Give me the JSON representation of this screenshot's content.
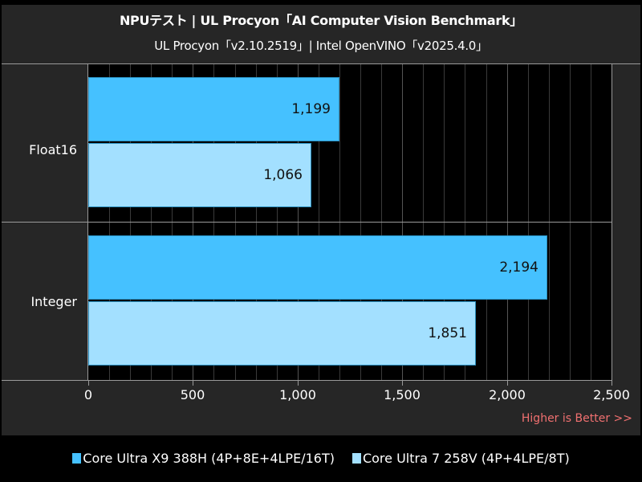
{
  "header": {
    "title": "NPUテスト | UL Procyon「AI Computer Vision Benchmark」",
    "subtitle": "UL Procyon「v2.10.2519」| Intel OpenVINO「v2025.4.0」"
  },
  "axis": {
    "ticks": [
      "0",
      "500",
      "1,000",
      "1,500",
      "2,000",
      "2,500"
    ],
    "note": "Higher is Better >>"
  },
  "legend": {
    "items": [
      {
        "label": "Core Ultra X9 388H (4P+8E+4LPE/16T)",
        "color": "#45c1ff"
      },
      {
        "label": "Core Ultra 7 258V (4P+4LPE/8T)",
        "color": "#a3e0ff"
      }
    ]
  },
  "categories": [
    {
      "label": "Float16",
      "values": [
        {
          "value": 1199,
          "label": "1,199"
        },
        {
          "value": 1066,
          "label": "1,066"
        }
      ]
    },
    {
      "label": "Integer",
      "values": [
        {
          "value": 2194,
          "label": "2,194"
        },
        {
          "value": 1851,
          "label": "1,851"
        }
      ]
    }
  ],
  "chart_data": {
    "type": "bar",
    "orientation": "horizontal",
    "title": "NPUテスト | UL Procyon「AI Computer Vision Benchmark」",
    "subtitle": "UL Procyon「v2.10.2519」| Intel OpenVINO「v2025.4.0」",
    "categories": [
      "Float16",
      "Integer"
    ],
    "series": [
      {
        "name": "Core Ultra X9 388H (4P+8E+4LPE/16T)",
        "color": "#45c1ff",
        "values": [
          1199,
          2194
        ]
      },
      {
        "name": "Core Ultra 7 258V (4P+4LPE/8T)",
        "color": "#a3e0ff",
        "values": [
          1066,
          1851
        ]
      }
    ],
    "xlabel": "",
    "ylabel": "",
    "xlim": [
      0,
      2500
    ],
    "xticks": [
      0,
      500,
      1000,
      1500,
      2000,
      2500
    ],
    "grid": true,
    "legend_position": "bottom",
    "annotations": [
      "Higher is Better >>"
    ]
  }
}
